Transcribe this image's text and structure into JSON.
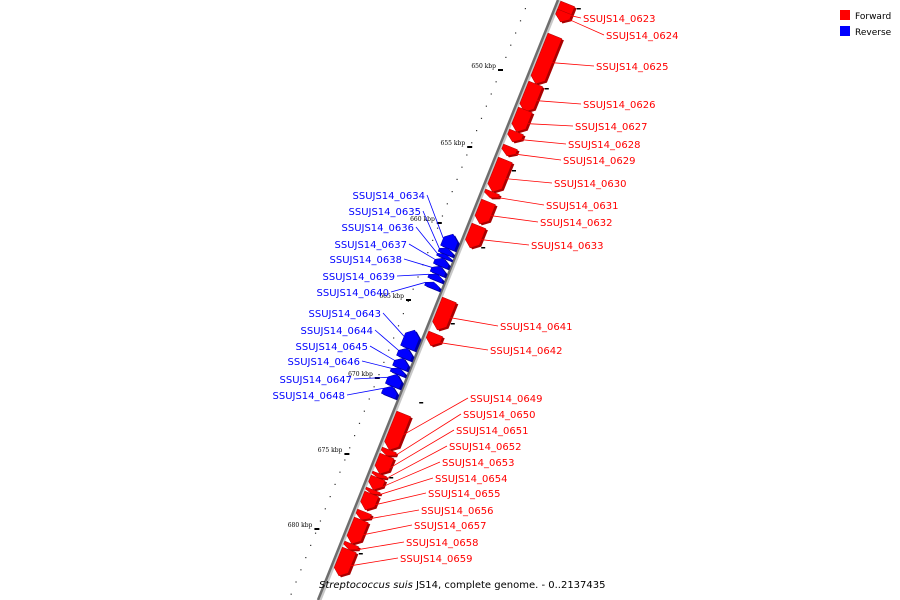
{
  "legend": [
    {
      "label": "Forward",
      "color": "#ff0000"
    },
    {
      "label": "Reverse",
      "color": "#0000ff"
    }
  ],
  "caption": {
    "species": "Streptococcus suis",
    "rest": " JS14, complete genome. - 0..2137435"
  },
  "scale_unit": "kbp",
  "scale_marks": [
    650,
    655,
    660,
    665,
    670,
    675,
    680
  ],
  "colors": {
    "forward": "#ff0000",
    "reverse": "#0000ff",
    "forward_dark": "#aa0000",
    "reverse_dark": "#0000a0",
    "label_line_forward": "#ff0000",
    "label_line_reverse": "#0000ff"
  },
  "forward_genes": [
    {
      "label": "SSUJS14_0623"
    },
    {
      "label": "SSUJS14_0624"
    },
    {
      "label": "SSUJS14_0625"
    },
    {
      "label": "SSUJS14_0626"
    },
    {
      "label": "SSUJS14_0627"
    },
    {
      "label": "SSUJS14_0628"
    },
    {
      "label": "SSUJS14_0629"
    },
    {
      "label": "SSUJS14_0630"
    },
    {
      "label": "SSUJS14_0631"
    },
    {
      "label": "SSUJS14_0632"
    },
    {
      "label": "SSUJS14_0633"
    },
    {
      "label": "SSUJS14_0641"
    },
    {
      "label": "SSUJS14_0642"
    },
    {
      "label": "SSUJS14_0649"
    },
    {
      "label": "SSUJS14_0650"
    },
    {
      "label": "SSUJS14_0651"
    },
    {
      "label": "SSUJS14_0652"
    },
    {
      "label": "SSUJS14_0653"
    },
    {
      "label": "SSUJS14_0654"
    },
    {
      "label": "SSUJS14_0655"
    },
    {
      "label": "SSUJS14_0656"
    },
    {
      "label": "SSUJS14_0657"
    },
    {
      "label": "SSUJS14_0658"
    },
    {
      "label": "SSUJS14_0659"
    }
  ],
  "reverse_genes": [
    {
      "label": "SSUJS14_0634"
    },
    {
      "label": "SSUJS14_0635"
    },
    {
      "label": "SSUJS14_0636"
    },
    {
      "label": "SSUJS14_0637"
    },
    {
      "label": "SSUJS14_0638"
    },
    {
      "label": "SSUJS14_0639"
    },
    {
      "label": "SSUJS14_0640"
    },
    {
      "label": "SSUJS14_0643"
    },
    {
      "label": "SSUJS14_0644"
    },
    {
      "label": "SSUJS14_0645"
    },
    {
      "label": "SSUJS14_0646"
    },
    {
      "label": "SSUJS14_0647"
    },
    {
      "label": "SSUJS14_0648"
    }
  ]
}
